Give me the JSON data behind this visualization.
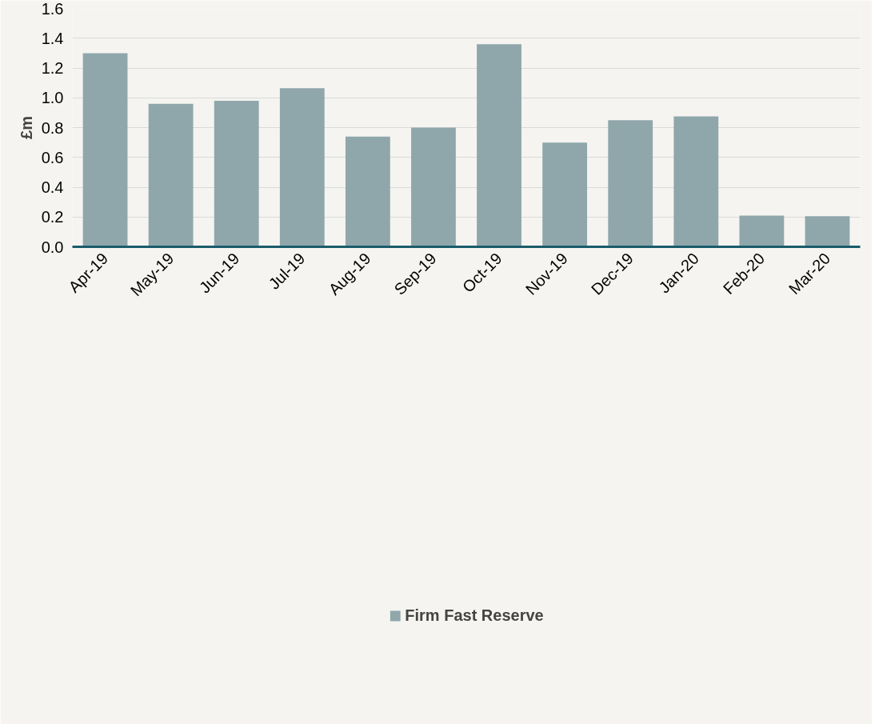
{
  "chart_data": {
    "type": "bar",
    "ylabel": "£m",
    "categories": [
      "Apr-19",
      "May-19",
      "Jun-19",
      "Jul-19",
      "Aug-19",
      "Sep-19",
      "Oct-19",
      "Nov-19",
      "Dec-19",
      "Jan-20",
      "Feb-20",
      "Mar-20"
    ],
    "series": [
      {
        "name": "Firm Fast Reserve",
        "color": "#8fa7ab",
        "values": [
          1.3,
          0.96,
          0.98,
          1.065,
          0.74,
          0.8,
          1.36,
          0.7,
          0.85,
          0.875,
          0.21,
          0.205
        ]
      }
    ],
    "ylim": [
      0,
      1.6
    ],
    "yticks": [
      {
        "value": 0,
        "label": "0.0"
      },
      {
        "value": 0.2,
        "label": "0.2"
      },
      {
        "value": 0.4,
        "label": "0.4"
      },
      {
        "value": 0.6,
        "label": "0.6"
      },
      {
        "value": 0.8,
        "label": "0.8"
      },
      {
        "value": 1.0,
        "label": "1.0"
      },
      {
        "value": 1.2,
        "label": "1.2"
      },
      {
        "value": 1.4,
        "label": "1.4"
      },
      {
        "value": 1.6,
        "label": "1.6"
      }
    ],
    "grid": "y",
    "legend": "bottom"
  }
}
